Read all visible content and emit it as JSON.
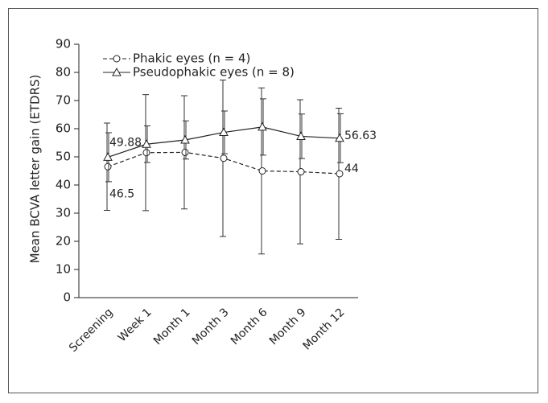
{
  "chart_data": {
    "type": "line",
    "ylabel": "Mean BCVA letter gain (ETDRS)",
    "categories": [
      "Screening",
      "Week 1",
      "Month 1",
      "Month 3",
      "Month 6",
      "Month 9",
      "Month 12"
    ],
    "series": [
      {
        "name": "Phakic eyes (n = 4)",
        "color": "#222222",
        "marker": "circle",
        "dashed": true,
        "values": [
          46.5,
          51.5,
          51.6,
          49.5,
          45,
          44.7,
          44
        ],
        "errors": [
          15.5,
          20.6,
          20.1,
          27.8,
          29.5,
          25.6,
          23.3
        ],
        "value_labels": [
          "46.5",
          null,
          null,
          null,
          null,
          null,
          "44"
        ]
      },
      {
        "name": "Pseudophakic eyes (n = 8)",
        "color": "#222222",
        "marker": "triangle",
        "dashed": false,
        "values": [
          49.88,
          54.5,
          56,
          58.7,
          60.6,
          57.3,
          56.63
        ],
        "errors": [
          8.7,
          6.5,
          6.8,
          7.6,
          10,
          7.9,
          8.7
        ],
        "value_labels": [
          "49.88",
          null,
          null,
          null,
          null,
          null,
          "56.63"
        ]
      }
    ],
    "ylim": [
      0,
      90
    ],
    "yticks": [
      0,
      10,
      20,
      30,
      40,
      50,
      60,
      70,
      80,
      90
    ],
    "legend": "upper left",
    "grid": false
  }
}
